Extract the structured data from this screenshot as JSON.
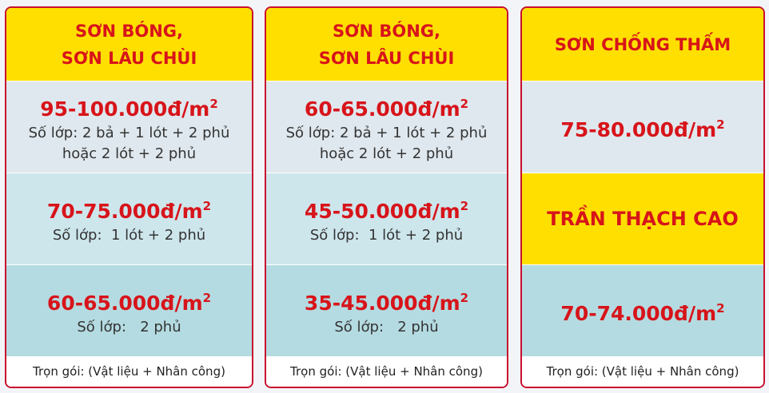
{
  "cards": [
    {
      "header": [
        "SƠN BÓNG,",
        "SƠN LÂU CHÙI"
      ],
      "rows": [
        {
          "price": "95-100.000đ/m",
          "sup": "2",
          "notes": [
            "Số lớp: 2 bả + 1 lót + 2 phủ",
            "hoặc 2 lót + 2 phủ"
          ]
        },
        {
          "price": "70-75.000đ/m",
          "sup": "2",
          "notes": [
            "Số lớp:  1 lót + 2 phủ"
          ]
        },
        {
          "price": "60-65.000đ/m",
          "sup": "2",
          "notes": [
            "Số lớp:   2 phủ"
          ]
        }
      ],
      "footer": "Trọn gói: (Vật liệu + Nhân công)"
    },
    {
      "header": [
        "SƠN BÓNG,",
        "SƠN LÂU CHÙI"
      ],
      "rows": [
        {
          "price": "60-65.000đ/m",
          "sup": "2",
          "notes": [
            "Số lớp: 2 bả + 1 lót + 2 phủ",
            "hoặc 2 lót + 2 phủ"
          ]
        },
        {
          "price": "45-50.000đ/m",
          "sup": "2",
          "notes": [
            "Số lớp:  1 lót + 2 phủ"
          ]
        },
        {
          "price": "35-45.000đ/m",
          "sup": "2",
          "notes": [
            "Số lớp:   2 phủ"
          ]
        }
      ],
      "footer": "Trọn gói: (Vật liệu + Nhân công)"
    },
    {
      "header": [
        "SƠN CHỐNG THẤM"
      ],
      "rows": [
        {
          "price": "75-80.000đ/m",
          "sup": "2"
        },
        {
          "title": "TRẦN THẠCH CAO"
        },
        {
          "price": "70-74.000đ/m",
          "sup": "2"
        }
      ],
      "footer": "Trọn gói: (Vật liệu + Nhân công)"
    }
  ]
}
